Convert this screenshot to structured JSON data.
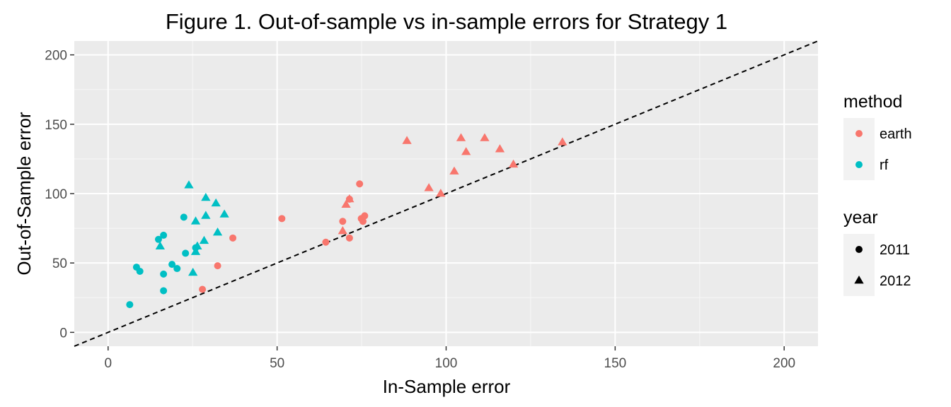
{
  "chart_data": {
    "type": "scatter",
    "title": "Figure 1. Out-of-sample vs in-sample errors for Strategy 1",
    "xlabel": "In-Sample error",
    "ylabel": "Out-of-Sample error",
    "xlim": [
      -10,
      210
    ],
    "ylim": [
      -10,
      210
    ],
    "xticks": [
      0,
      50,
      100,
      150,
      200
    ],
    "yticks": [
      0,
      50,
      100,
      150,
      200
    ],
    "grid": true,
    "reference_line": {
      "type": "y=x",
      "style": "dashed",
      "color": "#000000"
    },
    "legend": [
      {
        "title": "method",
        "aesthetic": "color",
        "entries": [
          {
            "label": "earth",
            "color": "#F8766D"
          },
          {
            "label": "rf",
            "color": "#00BFC4"
          }
        ]
      },
      {
        "title": "year",
        "aesthetic": "shape",
        "entries": [
          {
            "label": "2011",
            "shape": "circle"
          },
          {
            "label": "2012",
            "shape": "triangle"
          }
        ]
      }
    ],
    "legend_position": "right",
    "series": [
      {
        "method": "earth",
        "year": "2011",
        "points": [
          [
            27.9,
            31
          ],
          [
            32.4,
            48
          ],
          [
            36.9,
            68
          ],
          [
            51.4,
            82
          ],
          [
            64.4,
            65
          ],
          [
            69.4,
            80
          ],
          [
            71.4,
            96
          ],
          [
            71.4,
            68
          ],
          [
            74.4,
            107
          ],
          [
            74.9,
            82
          ],
          [
            75.4,
            80
          ],
          [
            75.9,
            84
          ]
        ]
      },
      {
        "method": "earth",
        "year": "2012",
        "points": [
          [
            69.4,
            73
          ],
          [
            70.4,
            92
          ],
          [
            71.4,
            96
          ],
          [
            88.4,
            138
          ],
          [
            94.9,
            104
          ],
          [
            98.4,
            100
          ],
          [
            102.4,
            116
          ],
          [
            104.4,
            140
          ],
          [
            105.9,
            130
          ],
          [
            111.4,
            140
          ],
          [
            115.9,
            132
          ],
          [
            119.9,
            121
          ],
          [
            134.4,
            137
          ]
        ]
      },
      {
        "method": "rf",
        "year": "2011",
        "points": [
          [
            6.4,
            20
          ],
          [
            8.4,
            47
          ],
          [
            9.4,
            44
          ],
          [
            14.9,
            67
          ],
          [
            16.4,
            70
          ],
          [
            16.4,
            42
          ],
          [
            16.4,
            30
          ],
          [
            18.9,
            49
          ],
          [
            20.4,
            46
          ],
          [
            22.4,
            83
          ],
          [
            22.9,
            57
          ],
          [
            25.9,
            61
          ]
        ]
      },
      {
        "method": "rf",
        "year": "2012",
        "points": [
          [
            15.4,
            62
          ],
          [
            23.9,
            106
          ],
          [
            25.1,
            43
          ],
          [
            25.9,
            80
          ],
          [
            25.9,
            58
          ],
          [
            26.4,
            62
          ],
          [
            28.4,
            66
          ],
          [
            28.9,
            84
          ],
          [
            28.9,
            97
          ],
          [
            31.9,
            93
          ],
          [
            32.4,
            72
          ],
          [
            34.4,
            85
          ]
        ]
      }
    ]
  }
}
